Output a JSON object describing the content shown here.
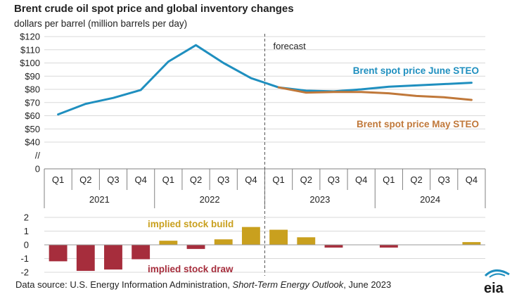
{
  "title": "Brent crude oil spot price and global inventory changes",
  "subtitle": "dollars per barrel (million barrels per day)",
  "source": {
    "prefix": "Data source: U.S. Energy Information Administration, ",
    "publication": "Short-Term Energy Outlook",
    "suffix": ", June 2023"
  },
  "logo_text": "eia",
  "colors": {
    "june": "#1f8fbf",
    "may": "#c0783a",
    "build": "#c9a01e",
    "draw": "#a62d3c",
    "grid": "#d9d9d9",
    "axis": "#808080"
  },
  "chart_data": [
    {
      "type": "line",
      "x_quarters": [
        "Q1",
        "Q2",
        "Q3",
        "Q4",
        "Q1",
        "Q2",
        "Q3",
        "Q4",
        "Q1",
        "Q2",
        "Q3",
        "Q4",
        "Q1",
        "Q2",
        "Q3",
        "Q4"
      ],
      "x_years": [
        "2021",
        "2022",
        "2023",
        "2024"
      ],
      "y_ticks": [
        "$120",
        "$110",
        "$100",
        "$90",
        "$80",
        "$70",
        "$60",
        "$50",
        "$40",
        "//",
        "0"
      ],
      "ylim": [
        40,
        120
      ],
      "forecast_label": "forecast",
      "forecast_start_index": 8,
      "series": [
        {
          "name": "Brent spot price June STEO",
          "color_key": "june",
          "values": [
            61,
            69,
            73.5,
            79.5,
            101,
            113.5,
            100,
            88.5,
            81.5,
            79,
            78.5,
            80,
            82,
            83,
            84,
            85
          ]
        },
        {
          "name": "Brent spot price May STEO",
          "color_key": "may",
          "values": [
            null,
            null,
            null,
            null,
            null,
            null,
            null,
            null,
            81.5,
            77.5,
            78,
            78,
            77,
            75,
            74,
            72
          ]
        }
      ]
    },
    {
      "type": "bar",
      "y_ticks": [
        "2",
        "1",
        "0",
        "-1",
        "-2"
      ],
      "ylim": [
        -2,
        2
      ],
      "values": [
        -1.2,
        -1.9,
        -1.8,
        -1.05,
        0.3,
        -0.3,
        0.4,
        1.3,
        1.1,
        0.55,
        -0.2,
        0.0,
        -0.2,
        0.0,
        0.0,
        0.2
      ],
      "annotations": {
        "build": "implied stock  build",
        "draw": "implied stock draw"
      }
    }
  ]
}
